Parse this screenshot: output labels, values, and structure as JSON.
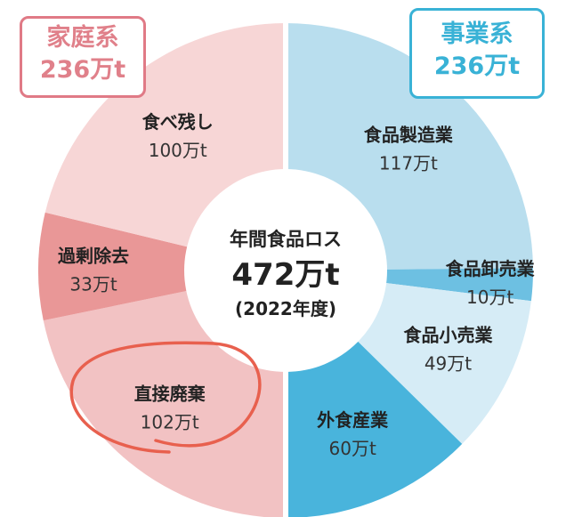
{
  "colors": {
    "household": "#e07a86",
    "business": "#39b2d6",
    "highlight_ring": "#e8604e"
  },
  "badges": {
    "household": {
      "title": "家庭系",
      "amount": "236万t"
    },
    "business": {
      "title": "事業系",
      "amount": "236万t"
    }
  },
  "chart_data": {
    "type": "pie",
    "title": "年間食品ロス",
    "total_label": "472万t",
    "subtitle": "(2022年度)",
    "unit": "万t",
    "total": 472,
    "groups": [
      {
        "name": "家庭系",
        "total_label": "236万t",
        "total": 236
      },
      {
        "name": "事業系",
        "total_label": "236万t",
        "total": 236
      }
    ],
    "slices": [
      {
        "label": "食品製造業",
        "value": 117,
        "value_label": "117万t",
        "group": "事業系",
        "color": "#b9deee",
        "text_color": "#333333"
      },
      {
        "label": "食品卸売業",
        "value": 10,
        "value_label": "10万t",
        "group": "事業系",
        "color": "#6dc0e2",
        "text_color": "#333333"
      },
      {
        "label": "食品小売業",
        "value": 49,
        "value_label": "49万t",
        "group": "事業系",
        "color": "#d6ecf6",
        "text_color": "#333333"
      },
      {
        "label": "外食産業",
        "value": 60,
        "value_label": "60万t",
        "group": "事業系",
        "color": "#49b4dc",
        "text_color": "#333333"
      },
      {
        "label": "直接廃棄",
        "value": 102,
        "value_label": "102万t",
        "group": "家庭系",
        "color": "#f2c2c3",
        "text_color": "#333333",
        "highlighted": true
      },
      {
        "label": "過剰除去",
        "value": 33,
        "value_label": "33万t",
        "group": "家庭系",
        "color": "#e99797",
        "text_color": "#333333"
      },
      {
        "label": "食べ残し",
        "value": 100,
        "value_label": "100万t",
        "group": "家庭系",
        "color": "#f7d6d6",
        "text_color": "#333333"
      }
    ]
  }
}
